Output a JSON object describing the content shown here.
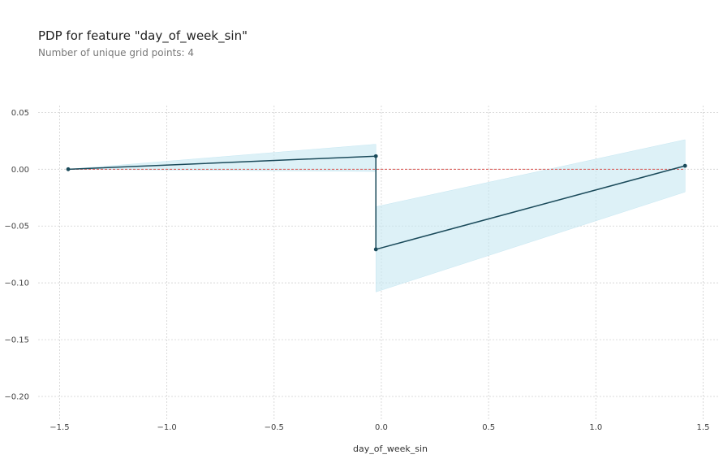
{
  "chart_data": {
    "type": "line",
    "title": "PDP for feature \"day_of_week_sin\"",
    "subtitle": "Number of unique grid points: 4",
    "xlabel": "day_of_week_sin",
    "ylabel": "",
    "xlim": [
      -1.6,
      1.57
    ],
    "ylim": [
      -0.22,
      0.056
    ],
    "x_ticks": [
      -1.5,
      -1.0,
      -0.5,
      0.0,
      0.5,
      1.0,
      1.5
    ],
    "x_tick_labels": [
      "−1.5",
      "−1.0",
      "−0.5",
      "0.0",
      "0.5",
      "1.0",
      "1.5"
    ],
    "y_ticks": [
      0.05,
      0.0,
      -0.05,
      -0.1,
      -0.15,
      -0.2
    ],
    "y_tick_labels": [
      "0.05",
      "0.00",
      "−0.05",
      "−0.10",
      "−0.15",
      "−0.20"
    ],
    "grid": true,
    "x": [
      -1.4599,
      -0.0255,
      -0.0255,
      1.4159
    ],
    "series": [
      {
        "values": [
          0.0,
          0.0115,
          -0.0705,
          0.003
        ],
        "lower": [
          0.0,
          -0.002,
          -0.108,
          -0.02
        ],
        "upper": [
          0.0,
          0.022,
          -0.033,
          0.026
        ],
        "color": "#1a4a5a",
        "fill": "#c6e7f2"
      }
    ],
    "reference_line": {
      "y": 0.0,
      "color": "#d9534f",
      "style": "dashed"
    }
  }
}
